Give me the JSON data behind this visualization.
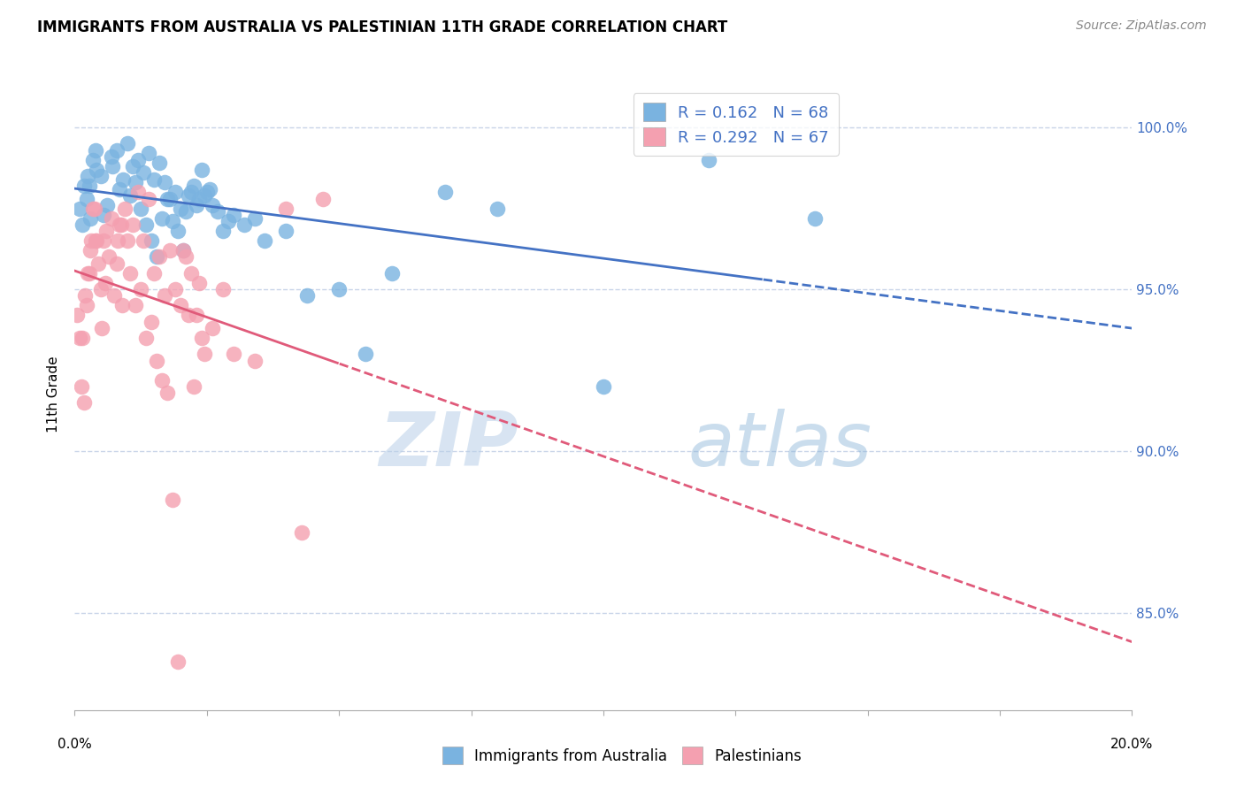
{
  "title": "IMMIGRANTS FROM AUSTRALIA VS PALESTINIAN 11TH GRADE CORRELATION CHART",
  "source": "Source: ZipAtlas.com",
  "ylabel": "11th Grade",
  "xlim": [
    0.0,
    20.0
  ],
  "ylim": [
    82.0,
    101.5
  ],
  "yticks": [
    85.0,
    90.0,
    95.0,
    100.0
  ],
  "ytick_labels": [
    "85.0%",
    "90.0%",
    "95.0%",
    "100.0%"
  ],
  "color_blue": "#7ab3e0",
  "color_pink": "#f4a0b0",
  "line_blue": "#4472c4",
  "line_pink": "#e05a7a",
  "blue_scatter_x": [
    0.1,
    0.15,
    0.18,
    0.22,
    0.25,
    0.28,
    0.3,
    0.35,
    0.4,
    0.42,
    0.5,
    0.55,
    0.62,
    0.7,
    0.72,
    0.8,
    0.85,
    0.92,
    1.0,
    1.05,
    1.1,
    1.15,
    1.2,
    1.25,
    1.3,
    1.35,
    1.4,
    1.45,
    1.5,
    1.55,
    1.6,
    1.65,
    1.7,
    1.75,
    1.8,
    1.85,
    1.9,
    1.95,
    2.0,
    2.05,
    2.1,
    2.15,
    2.2,
    2.25,
    2.3,
    2.35,
    2.4,
    2.45,
    2.5,
    2.55,
    2.6,
    2.7,
    2.8,
    2.9,
    3.0,
    3.2,
    3.4,
    3.6,
    4.0,
    4.4,
    5.0,
    5.5,
    6.0,
    7.0,
    8.0,
    10.0,
    12.0,
    14.0
  ],
  "blue_scatter_y": [
    97.5,
    97.0,
    98.2,
    97.8,
    98.5,
    98.2,
    97.2,
    99.0,
    99.3,
    98.7,
    98.5,
    97.3,
    97.6,
    99.1,
    98.8,
    99.3,
    98.1,
    98.4,
    99.5,
    97.9,
    98.8,
    98.3,
    99.0,
    97.5,
    98.6,
    97.0,
    99.2,
    96.5,
    98.4,
    96.0,
    98.9,
    97.2,
    98.3,
    97.8,
    97.8,
    97.1,
    98.0,
    96.8,
    97.5,
    96.2,
    97.4,
    97.9,
    98.0,
    98.2,
    97.6,
    97.8,
    98.7,
    97.9,
    98.0,
    98.1,
    97.6,
    97.4,
    96.8,
    97.1,
    97.3,
    97.0,
    97.2,
    96.5,
    96.8,
    94.8,
    95.0,
    93.0,
    95.5,
    98.0,
    97.5,
    92.0,
    99.0,
    97.2
  ],
  "pink_scatter_x": [
    0.05,
    0.1,
    0.12,
    0.15,
    0.18,
    0.2,
    0.22,
    0.25,
    0.28,
    0.3,
    0.32,
    0.35,
    0.38,
    0.4,
    0.42,
    0.45,
    0.5,
    0.52,
    0.55,
    0.58,
    0.6,
    0.65,
    0.7,
    0.75,
    0.8,
    0.82,
    0.85,
    0.88,
    0.9,
    0.95,
    1.0,
    1.05,
    1.1,
    1.15,
    1.2,
    1.25,
    1.3,
    1.35,
    1.4,
    1.45,
    1.5,
    1.55,
    1.6,
    1.65,
    1.7,
    1.75,
    1.8,
    1.85,
    1.9,
    1.95,
    2.0,
    2.05,
    2.1,
    2.15,
    2.2,
    2.25,
    2.3,
    2.35,
    2.4,
    2.45,
    2.6,
    2.8,
    3.0,
    3.4,
    4.0,
    4.3,
    4.7
  ],
  "pink_scatter_y": [
    94.2,
    93.5,
    92.0,
    93.5,
    91.5,
    94.8,
    94.5,
    95.5,
    95.5,
    96.2,
    96.5,
    97.5,
    97.5,
    96.5,
    96.5,
    95.8,
    95.0,
    93.8,
    96.5,
    95.2,
    96.8,
    96.0,
    97.2,
    94.8,
    95.8,
    96.5,
    97.0,
    97.0,
    94.5,
    97.5,
    96.5,
    95.5,
    97.0,
    94.5,
    98.0,
    95.0,
    96.5,
    93.5,
    97.8,
    94.0,
    95.5,
    92.8,
    96.0,
    92.2,
    94.8,
    91.8,
    96.2,
    88.5,
    95.0,
    83.5,
    94.5,
    96.2,
    96.0,
    94.2,
    95.5,
    92.0,
    94.2,
    95.2,
    93.5,
    93.0,
    93.8,
    95.0,
    93.0,
    92.8,
    97.5,
    87.5,
    97.8
  ],
  "watermark_zip": "ZIP",
  "watermark_atlas": "atlas",
  "background_color": "#ffffff",
  "grid_color": "#c8d4e8",
  "blue_solid_end": 13.0,
  "pink_solid_end": 5.0
}
